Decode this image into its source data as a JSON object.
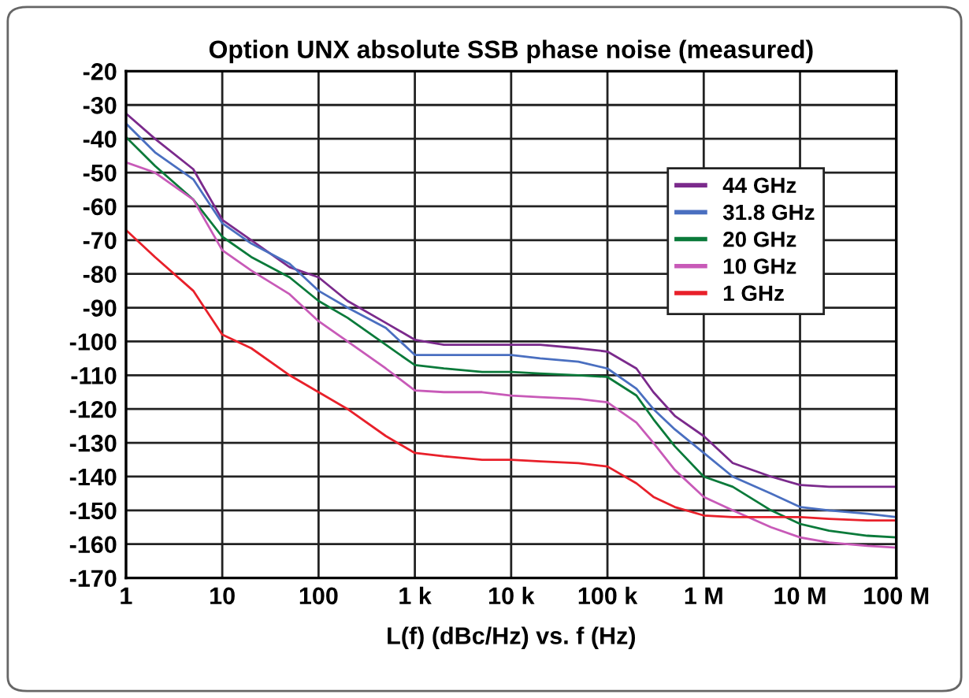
{
  "chart_data": {
    "type": "line",
    "title": "Option UNX absolute SSB phase noise (measured)",
    "xlabel": "L(f) (dBc/Hz) vs. f (Hz)",
    "log": "x",
    "grid": true,
    "legend": "top right",
    "line_style": "solid",
    "marker": "none",
    "xlim": [
      1,
      100000000
    ],
    "xticks": [
      1,
      10,
      100,
      {
        "value": 1000,
        "label": "1 k"
      },
      {
        "value": 10000,
        "label": "10 k"
      },
      {
        "value": 100000,
        "label": "100 k"
      },
      {
        "value": 1000000,
        "label": "1 M"
      },
      {
        "value": 10000000,
        "label": "10 M"
      },
      {
        "value": 100000000,
        "label": "100 M"
      }
    ],
    "ylim": [
      -170,
      -20
    ],
    "yticks": [
      -20,
      -30,
      -40,
      -50,
      -60,
      -70,
      -80,
      -90,
      -100,
      -110,
      -120,
      -130,
      -140,
      -150,
      -160,
      -170
    ],
    "x": [
      1,
      2,
      5,
      10,
      20,
      50,
      100,
      200,
      500,
      1000,
      2000,
      5000,
      10000,
      20000,
      50000,
      100000,
      200000,
      300000,
      500000,
      1000000,
      2000000,
      5000000,
      10000000,
      20000000,
      50000000,
      100000000
    ],
    "series": [
      {
        "name": "44 GHz",
        "color": "#7b2a8c",
        "values": [
          -32.5,
          -40,
          -49,
          -64,
          -70,
          -78,
          -81,
          -88,
          -94.5,
          -99.5,
          -101,
          -101,
          -101,
          -101,
          -102,
          -103,
          -108,
          -115,
          -122,
          -128,
          -136,
          -140,
          -142.5,
          -143,
          -143,
          -143
        ]
      },
      {
        "name": "31.8 GHz",
        "color": "#4a6fc0",
        "values": [
          -35.5,
          -44,
          -52,
          -65,
          -71,
          -77,
          -85,
          -90,
          -96,
          -104,
          -104,
          -104,
          -104,
          -105,
          -106,
          -108,
          -114,
          -120,
          -126,
          -133,
          -140,
          -145,
          -149,
          -150,
          -151,
          -152
        ]
      },
      {
        "name": "20 GHz",
        "color": "#0a7a3a",
        "values": [
          -39.5,
          -48,
          -58,
          -69,
          -75,
          -81,
          -88,
          -93,
          -101,
          -107,
          -108,
          -109,
          -109,
          -109.5,
          -110,
          -110.5,
          -116,
          -123,
          -131,
          -140,
          -143,
          -150,
          -154,
          -156,
          -157.5,
          -158
        ]
      },
      {
        "name": "10 GHz",
        "color": "#c85ab8",
        "values": [
          -47,
          -50,
          -58,
          -73,
          -79,
          -86,
          -94,
          -100,
          -108,
          -114.5,
          -115,
          -115,
          -116,
          -116.5,
          -117,
          -118,
          -124,
          -130,
          -138,
          -146,
          -150,
          -155,
          -158,
          -159.5,
          -160.5,
          -161
        ]
      },
      {
        "name": "1 GHz",
        "color": "#e8202a",
        "values": [
          -67,
          -75,
          -85,
          -98,
          -102,
          -110,
          -115,
          -120,
          -128,
          -133,
          -134,
          -135,
          -135,
          -135.5,
          -136,
          -137,
          -142,
          -146,
          -149,
          -151.5,
          -152,
          -152,
          -152,
          -152.5,
          -153,
          -153
        ]
      }
    ]
  }
}
